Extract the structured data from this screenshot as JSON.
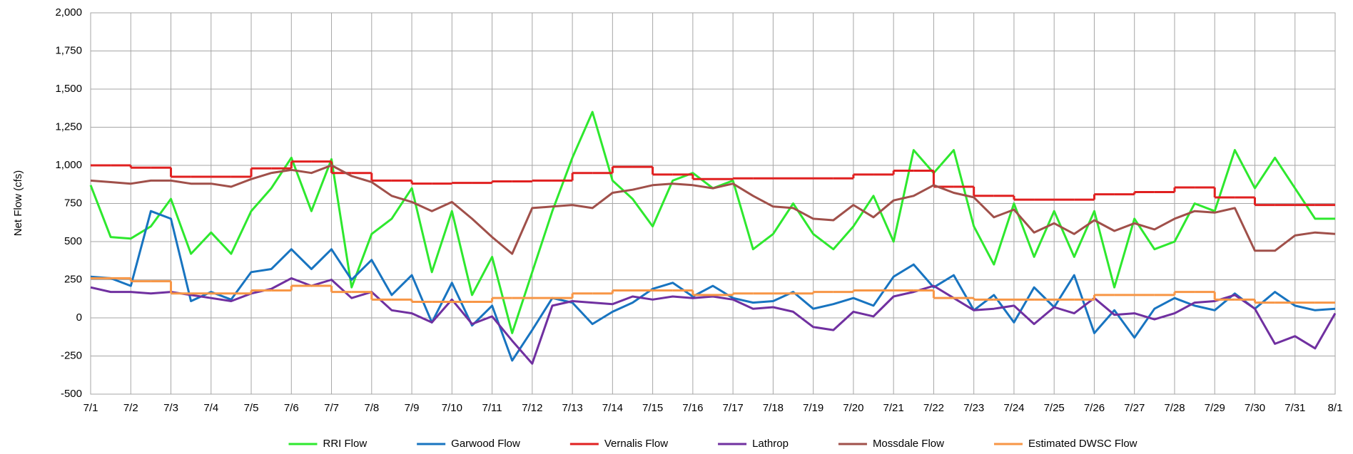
{
  "chart_data": {
    "type": "line",
    "y_label": "Net Flow (cfs)",
    "x": [
      0,
      0.5,
      1,
      1.5,
      2,
      2.5,
      3,
      3.5,
      4,
      4.5,
      5,
      5.5,
      6,
      6.5,
      7,
      7.5,
      8,
      8.5,
      9,
      9.5,
      10,
      10.5,
      11,
      11.5,
      12,
      12.5,
      13,
      13.5,
      14,
      14.5,
      15,
      15.5,
      16,
      16.5,
      17,
      17.5,
      18,
      18.5,
      19,
      19.5,
      20,
      20.5,
      21,
      21.5,
      22,
      22.5,
      23,
      23.5,
      24,
      24.5,
      25,
      25.5,
      26,
      26.5,
      27,
      27.5,
      28,
      28.5,
      29,
      29.5,
      30,
      30.5,
      31
    ],
    "xlim": [
      0,
      31
    ],
    "xticks": [
      {
        "value": 0,
        "label": "7/1"
      },
      {
        "value": 1,
        "label": "7/2"
      },
      {
        "value": 2,
        "label": "7/3"
      },
      {
        "value": 3,
        "label": "7/4"
      },
      {
        "value": 4,
        "label": "7/5"
      },
      {
        "value": 5,
        "label": "7/6"
      },
      {
        "value": 6,
        "label": "7/7"
      },
      {
        "value": 7,
        "label": "7/8"
      },
      {
        "value": 8,
        "label": "7/9"
      },
      {
        "value": 9,
        "label": "7/10"
      },
      {
        "value": 10,
        "label": "7/11"
      },
      {
        "value": 11,
        "label": "7/12"
      },
      {
        "value": 12,
        "label": "7/13"
      },
      {
        "value": 13,
        "label": "7/14"
      },
      {
        "value": 14,
        "label": "7/15"
      },
      {
        "value": 15,
        "label": "7/16"
      },
      {
        "value": 16,
        "label": "7/17"
      },
      {
        "value": 17,
        "label": "7/18"
      },
      {
        "value": 18,
        "label": "7/19"
      },
      {
        "value": 19,
        "label": "7/20"
      },
      {
        "value": 20,
        "label": "7/21"
      },
      {
        "value": 21,
        "label": "7/22"
      },
      {
        "value": 22,
        "label": "7/23"
      },
      {
        "value": 23,
        "label": "7/24"
      },
      {
        "value": 24,
        "label": "7/25"
      },
      {
        "value": 25,
        "label": "7/26"
      },
      {
        "value": 26,
        "label": "7/27"
      },
      {
        "value": 27,
        "label": "7/28"
      },
      {
        "value": 28,
        "label": "7/29"
      },
      {
        "value": 29,
        "label": "7/30"
      },
      {
        "value": 30,
        "label": "7/31"
      },
      {
        "value": 31,
        "label": "8/1"
      }
    ],
    "ylim": [
      -500,
      2000
    ],
    "yticks": [
      {
        "value": 2000,
        "label": "2,000"
      },
      {
        "value": 1750,
        "label": "1,750"
      },
      {
        "value": 1500,
        "label": "1,500"
      },
      {
        "value": 1250,
        "label": "1,250"
      },
      {
        "value": 1000,
        "label": "1,000"
      },
      750,
      500,
      250,
      0,
      -250,
      -500
    ],
    "grid": true,
    "legend": "bottom",
    "series": [
      {
        "name": "RRI Flow",
        "color": "#2ee82e",
        "values": [
          870,
          530,
          520,
          600,
          780,
          420,
          560,
          420,
          700,
          850,
          1050,
          700,
          1040,
          200,
          550,
          650,
          850,
          300,
          700,
          150,
          400,
          -100,
          300,
          700,
          1050,
          1350,
          900,
          780,
          600,
          900,
          950,
          850,
          900,
          450,
          550,
          750,
          550,
          450,
          600,
          800,
          500,
          1100,
          950,
          1100,
          600,
          350,
          750,
          400,
          700,
          400,
          700,
          200,
          650,
          450,
          500,
          750,
          700,
          1100,
          850,
          1050,
          850,
          650,
          650
        ]
      },
      {
        "name": "Garwood Flow",
        "color": "#1874c0",
        "values": [
          270,
          260,
          210,
          700,
          650,
          110,
          170,
          120,
          300,
          320,
          450,
          320,
          450,
          250,
          380,
          150,
          280,
          -30,
          230,
          -50,
          80,
          -280,
          -80,
          130,
          100,
          -40,
          40,
          100,
          190,
          230,
          140,
          210,
          130,
          100,
          110,
          170,
          60,
          90,
          130,
          80,
          270,
          350,
          200,
          280,
          50,
          150,
          -30,
          200,
          70,
          280,
          -100,
          50,
          -130,
          60,
          130,
          80,
          50,
          160,
          60,
          170,
          80,
          50,
          60
        ]
      },
      {
        "name": "Vernalis Flow",
        "color": "#e02020",
        "step": true,
        "values": [
          1000,
          1000,
          985,
          985,
          925,
          925,
          925,
          925,
          980,
          980,
          1025,
          1025,
          950,
          950,
          900,
          900,
          880,
          880,
          885,
          885,
          895,
          895,
          900,
          900,
          950,
          950,
          990,
          990,
          940,
          940,
          910,
          910,
          915,
          915,
          915,
          915,
          915,
          915,
          940,
          940,
          965,
          965,
          860,
          860,
          800,
          800,
          775,
          775,
          775,
          775,
          810,
          810,
          825,
          825,
          855,
          855,
          790,
          790,
          740,
          740,
          740,
          740,
          740
        ]
      },
      {
        "name": "Lathrop",
        "color": "#7030a0",
        "values": [
          200,
          170,
          170,
          160,
          170,
          150,
          130,
          110,
          160,
          190,
          260,
          210,
          250,
          130,
          170,
          50,
          30,
          -30,
          120,
          -40,
          10,
          -150,
          -300,
          80,
          110,
          100,
          90,
          140,
          120,
          140,
          130,
          140,
          120,
          60,
          70,
          40,
          -60,
          -80,
          40,
          10,
          140,
          170,
          210,
          130,
          50,
          60,
          80,
          -40,
          70,
          30,
          130,
          20,
          30,
          -10,
          30,
          100,
          110,
          150,
          60,
          -170,
          -120,
          -200,
          30
        ]
      },
      {
        "name": "Mossdale Flow",
        "color": "#a0504a",
        "values": [
          900,
          890,
          880,
          900,
          900,
          880,
          880,
          860,
          910,
          950,
          970,
          950,
          1000,
          930,
          890,
          800,
          760,
          700,
          760,
          650,
          530,
          420,
          720,
          730,
          740,
          720,
          820,
          840,
          870,
          880,
          870,
          850,
          880,
          800,
          730,
          720,
          650,
          640,
          740,
          660,
          770,
          800,
          870,
          820,
          790,
          660,
          710,
          560,
          620,
          550,
          640,
          570,
          620,
          580,
          650,
          700,
          690,
          720,
          440,
          440,
          540,
          560,
          550
        ]
      },
      {
        "name": "Estimated DWSC Flow",
        "color": "#f79646",
        "step": true,
        "values": [
          260,
          260,
          240,
          240,
          160,
          160,
          160,
          160,
          180,
          180,
          210,
          210,
          170,
          170,
          120,
          120,
          105,
          105,
          105,
          105,
          130,
          130,
          130,
          130,
          160,
          160,
          180,
          180,
          180,
          180,
          150,
          150,
          160,
          160,
          160,
          160,
          170,
          170,
          180,
          180,
          180,
          180,
          130,
          130,
          120,
          120,
          120,
          120,
          120,
          120,
          150,
          150,
          150,
          150,
          170,
          170,
          120,
          120,
          100,
          100,
          100,
          100,
          100
        ]
      }
    ]
  }
}
